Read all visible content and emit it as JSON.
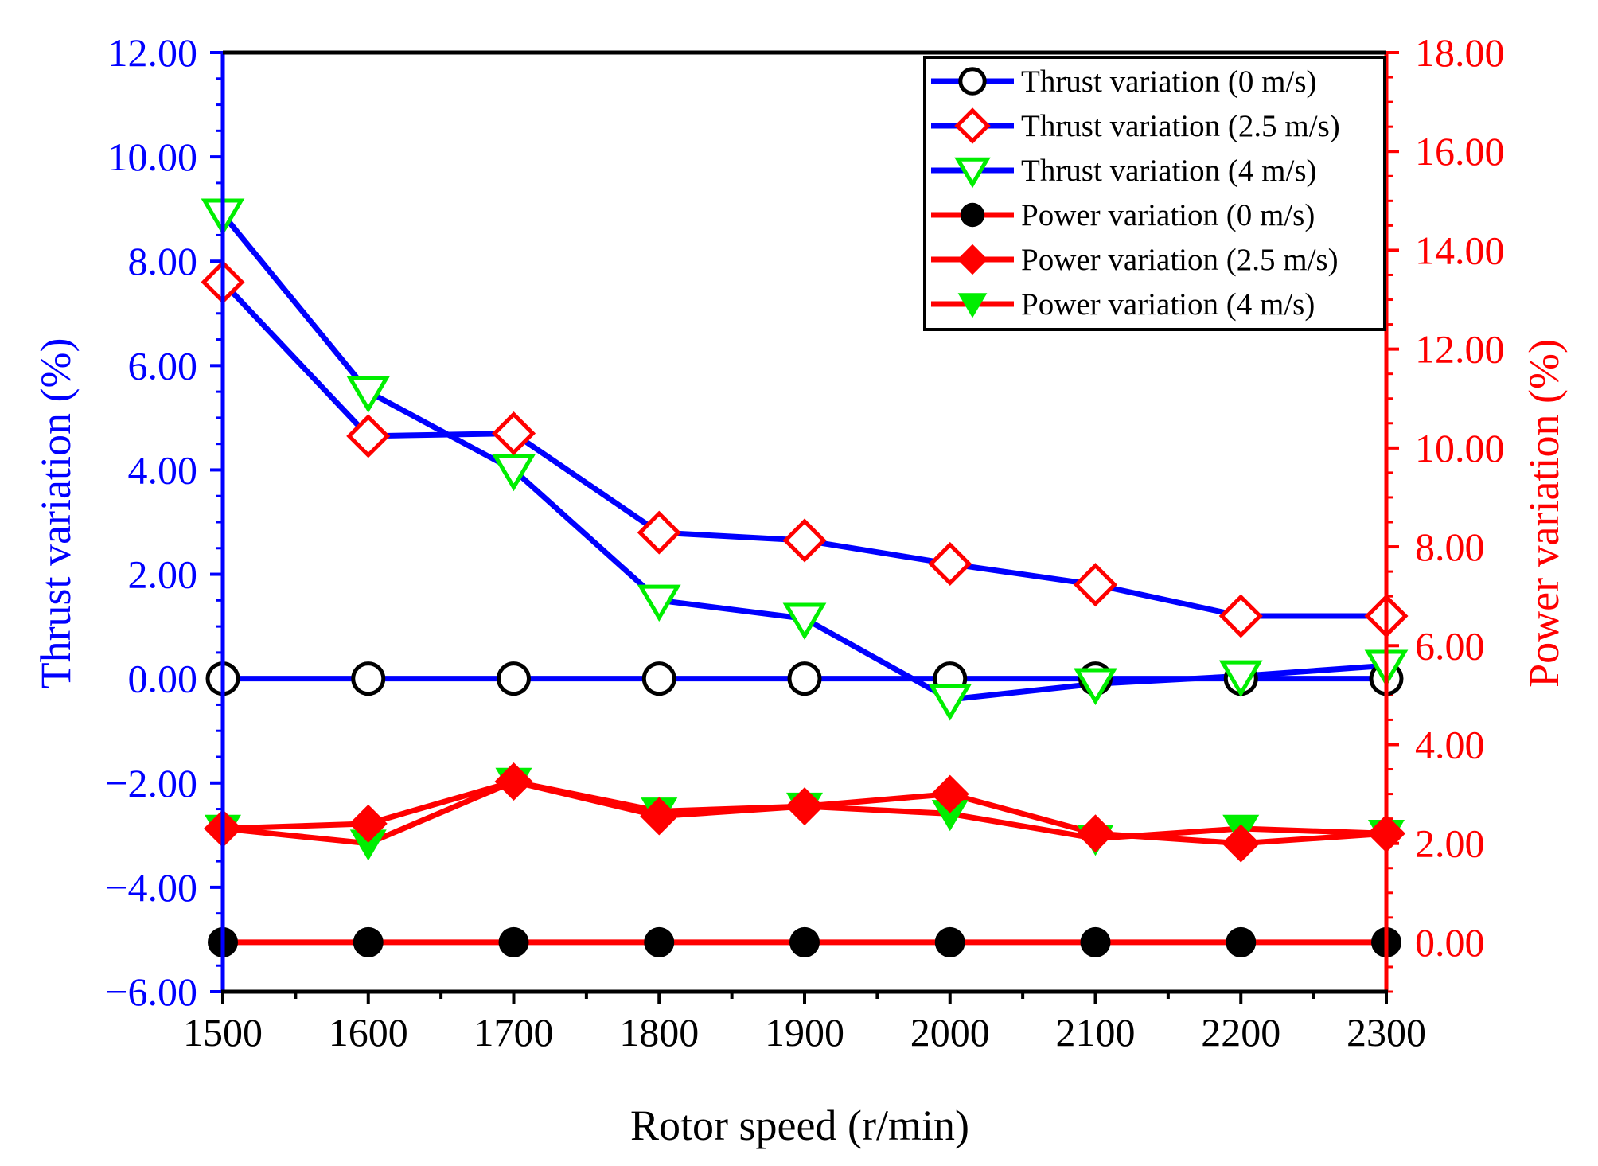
{
  "chart_data": {
    "type": "line",
    "x": [
      1500,
      1600,
      1700,
      1800,
      1900,
      2000,
      2100,
      2200,
      2300
    ],
    "xlabel": "Rotor speed (r/min)",
    "xlim": [
      1500,
      2300
    ],
    "x_ticks": [
      "1500",
      "1600",
      "1700",
      "1800",
      "1900",
      "2000",
      "2100",
      "2200",
      "2300"
    ],
    "y_left": {
      "label": "Thrust variation (%)",
      "range": [
        -6,
        12
      ],
      "ticks": [
        -6,
        -4,
        -2,
        0,
        2,
        4,
        6,
        8,
        10,
        12
      ],
      "tick_labels": [
        "−6.00",
        "−4.00",
        "−2.00",
        "0.00",
        "2.00",
        "4.00",
        "6.00",
        "8.00",
        "10.00",
        "12.00"
      ],
      "color": "#0000ff"
    },
    "y_right": {
      "label": "Power variation (%)",
      "range": [
        -1,
        18
      ],
      "ticks": [
        0,
        2,
        4,
        6,
        8,
        10,
        12,
        14,
        16,
        18
      ],
      "tick_labels": [
        "0.00",
        "2.00",
        "4.00",
        "6.00",
        "8.00",
        "10.00",
        "12.00",
        "14.00",
        "16.00",
        "18.00"
      ],
      "color": "#ff0000"
    },
    "legend_position": "top-right",
    "series": [
      {
        "name": "Thrust variation (0 m/s)",
        "axis": "left",
        "line_color": "#0000ff",
        "marker": "circle-open",
        "marker_color": "#000000",
        "values": [
          0,
          0,
          0,
          0,
          0,
          0,
          0,
          0,
          0
        ]
      },
      {
        "name": "Thrust variation (2.5 m/s)",
        "axis": "left",
        "line_color": "#0000ff",
        "marker": "diamond-open",
        "marker_color": "#ff0000",
        "values": [
          7.6,
          4.65,
          4.7,
          2.8,
          2.65,
          2.2,
          1.8,
          1.2,
          1.2
        ]
      },
      {
        "name": "Thrust variation (4 m/s)",
        "axis": "left",
        "line_color": "#0000ff",
        "marker": "triangle-down-open",
        "marker_color": "#00ee00",
        "values": [
          8.9,
          5.5,
          4.0,
          1.5,
          1.15,
          -0.4,
          -0.1,
          0.05,
          0.25
        ]
      },
      {
        "name": "Power variation (0 m/s)",
        "axis": "right",
        "line_color": "#ff0000",
        "marker": "circle-filled",
        "marker_color": "#000000",
        "values": [
          0,
          0,
          0,
          0,
          0,
          0,
          0,
          0,
          0
        ]
      },
      {
        "name": "Power variation (2.5 m/s)",
        "axis": "right",
        "line_color": "#ff0000",
        "marker": "diamond-filled",
        "marker_color": "#ff0000",
        "values": [
          2.3,
          2.4,
          3.25,
          2.55,
          2.75,
          3.0,
          2.2,
          2.0,
          2.2
        ]
      },
      {
        "name": "Power variation (4 m/s)",
        "axis": "right",
        "line_color": "#ff0000",
        "marker": "triangle-down-filled",
        "marker_color": "#00ee00",
        "values": [
          2.3,
          2.0,
          3.25,
          2.65,
          2.75,
          2.6,
          2.1,
          2.3,
          2.2
        ]
      }
    ]
  }
}
